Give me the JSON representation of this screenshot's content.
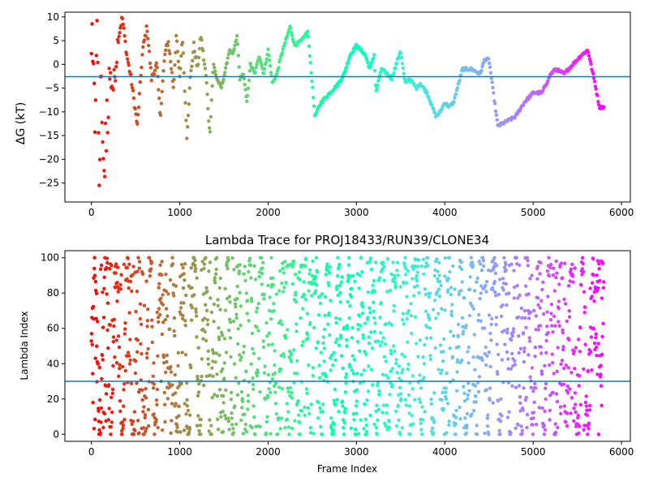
{
  "chart_data": [
    {
      "type": "scatter",
      "title": "",
      "xlabel": "",
      "ylabel": "ΔG (kT)",
      "xlim": [
        -300,
        6100
      ],
      "ylim": [
        -29,
        11
      ],
      "xticks": [
        0,
        1000,
        2000,
        3000,
        4000,
        5000,
        6000
      ],
      "xtick_labels": [
        "0",
        "1000",
        "2000",
        "3000",
        "4000",
        "5000",
        "6000"
      ],
      "yticks": [
        10,
        5,
        0,
        -5,
        -10,
        -15,
        -20,
        -25
      ],
      "ytick_labels": [
        "10",
        "5",
        "0",
        "−5",
        "−10",
        "−15",
        "−20",
        "−25"
      ],
      "hline": -2.6,
      "hline_color": "#1f77b4",
      "colormap": "rainbow",
      "grid": false,
      "keypoints": [
        [
          0,
          5
        ],
        [
          40,
          -12
        ],
        [
          60,
          10
        ],
        [
          90,
          -26
        ],
        [
          110,
          0
        ],
        [
          140,
          -23
        ],
        [
          170,
          -15
        ],
        [
          200,
          -2
        ],
        [
          250,
          -5
        ],
        [
          300,
          5
        ],
        [
          350,
          10
        ],
        [
          400,
          2
        ],
        [
          450,
          -3
        ],
        [
          520,
          -13
        ],
        [
          580,
          3
        ],
        [
          630,
          8
        ],
        [
          680,
          -3
        ],
        [
          740,
          0
        ],
        [
          780,
          -11
        ],
        [
          830,
          2
        ],
        [
          870,
          5
        ],
        [
          930,
          -5
        ],
        [
          960,
          6
        ],
        [
          1000,
          -3
        ],
        [
          1030,
          6
        ],
        [
          1080,
          -15
        ],
        [
          1120,
          -3
        ],
        [
          1160,
          4
        ],
        [
          1200,
          -1
        ],
        [
          1240,
          6
        ],
        [
          1300,
          -3
        ],
        [
          1340,
          -15
        ],
        [
          1380,
          0
        ],
        [
          1420,
          -3
        ],
        [
          1470,
          -5
        ],
        [
          1520,
          -1
        ],
        [
          1560,
          3
        ],
        [
          1600,
          2
        ],
        [
          1650,
          6
        ],
        [
          1680,
          -3
        ],
        [
          1720,
          -2
        ],
        [
          1760,
          -8
        ],
        [
          1800,
          0
        ],
        [
          1850,
          -2
        ],
        [
          1900,
          2
        ],
        [
          1950,
          -2
        ],
        [
          2000,
          3
        ],
        [
          2050,
          -4
        ],
        [
          2100,
          -2
        ],
        [
          2150,
          2
        ],
        [
          2200,
          5
        ],
        [
          2250,
          8
        ],
        [
          2300,
          4
        ],
        [
          2380,
          5
        ],
        [
          2450,
          7
        ],
        [
          2530,
          -11
        ],
        [
          2600,
          -8
        ],
        [
          2700,
          -6
        ],
        [
          2800,
          -4
        ],
        [
          2860,
          -2
        ],
        [
          2930,
          2
        ],
        [
          3000,
          4
        ],
        [
          3050,
          3
        ],
        [
          3100,
          2
        ],
        [
          3150,
          -1
        ],
        [
          3200,
          2
        ],
        [
          3220,
          -6
        ],
        [
          3280,
          -1
        ],
        [
          3350,
          -2
        ],
        [
          3400,
          -3
        ],
        [
          3500,
          3
        ],
        [
          3550,
          -4
        ],
        [
          3600,
          -3
        ],
        [
          3680,
          -5
        ],
        [
          3720,
          -4
        ],
        [
          3800,
          -6
        ],
        [
          3900,
          -11
        ],
        [
          3950,
          -10
        ],
        [
          4000,
          -8
        ],
        [
          4050,
          -9
        ],
        [
          4100,
          -8
        ],
        [
          4200,
          -1
        ],
        [
          4300,
          -1
        ],
        [
          4400,
          -2
        ],
        [
          4450,
          1
        ],
        [
          4500,
          1
        ],
        [
          4600,
          -13
        ],
        [
          4700,
          -12
        ],
        [
          4800,
          -11
        ],
        [
          4900,
          -8
        ],
        [
          5000,
          -6
        ],
        [
          5100,
          -6
        ],
        [
          5200,
          -2
        ],
        [
          5260,
          -1
        ],
        [
          5350,
          -2
        ],
        [
          5450,
          0
        ],
        [
          5550,
          2
        ],
        [
          5620,
          3
        ],
        [
          5700,
          -4
        ],
        [
          5750,
          -9
        ],
        [
          5800,
          -9
        ]
      ]
    },
    {
      "type": "scatter",
      "title": "Lambda Trace for PROJ18433/RUN39/CLONE34",
      "xlabel": "Frame Index",
      "ylabel": "Lambda Index",
      "xlim": [
        -300,
        6100
      ],
      "ylim": [
        -4,
        104
      ],
      "xticks": [
        0,
        1000,
        2000,
        3000,
        4000,
        5000,
        6000
      ],
      "xtick_labels": [
        "0",
        "1000",
        "2000",
        "3000",
        "4000",
        "5000",
        "6000"
      ],
      "yticks": [
        0,
        20,
        40,
        60,
        80,
        100
      ],
      "ytick_labels": [
        "0",
        "20",
        "40",
        "60",
        "80",
        "100"
      ],
      "hline": 30,
      "hline_color": "#1f77b4",
      "colormap": "rainbow",
      "grid": false,
      "frame_range": [
        0,
        5800
      ],
      "lambda_range": [
        0,
        100
      ],
      "dense_windows": [
        [
          2450,
          2550
        ],
        [
          3630,
          3700
        ],
        [
          3880,
          3950
        ],
        [
          4520,
          4600
        ],
        [
          5680,
          5780
        ]
      ]
    }
  ]
}
